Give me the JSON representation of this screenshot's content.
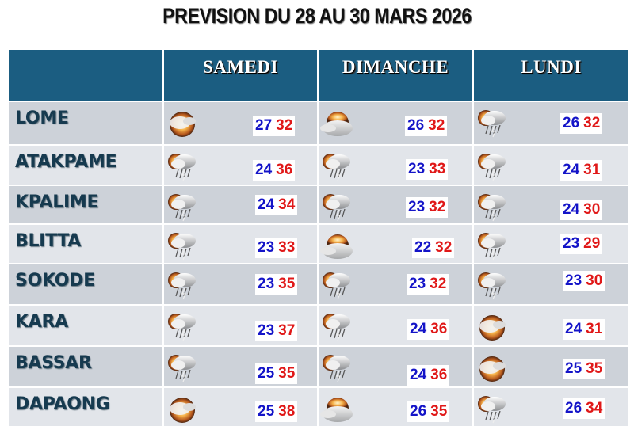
{
  "title": "PREVISION DU 28 AU 30 MARS 2026",
  "colors": {
    "header_bg": "#1b5d81",
    "row_dark": "#cdd2d9",
    "row_light": "#e2e5ea",
    "city_text": "#163a4f",
    "temp_min": "#1414c8",
    "temp_max": "#e01818"
  },
  "days": [
    {
      "label": "SAMEDI"
    },
    {
      "label": "DIMANCHE"
    },
    {
      "label": "LUNDI"
    }
  ],
  "rows": [
    {
      "city": "LOME",
      "forecasts": [
        {
          "icon": "sunny-cloud-icon",
          "min": "27",
          "max": "32"
        },
        {
          "icon": "partly-cloudy-icon",
          "min": "26",
          "max": "32"
        },
        {
          "icon": "thunderstorm-rain-icon",
          "min": "26",
          "max": "32"
        }
      ]
    },
    {
      "city": "ATAKPAME",
      "forecasts": [
        {
          "icon": "thunderstorm-rain-icon",
          "min": "24",
          "max": "36"
        },
        {
          "icon": "thunderstorm-rain-icon",
          "min": "23",
          "max": "33"
        },
        {
          "icon": "thunderstorm-rain-icon",
          "min": "24",
          "max": "31"
        }
      ]
    },
    {
      "city": "KPALIME",
      "forecasts": [
        {
          "icon": "thunderstorm-rain-icon",
          "min": "24",
          "max": "34"
        },
        {
          "icon": "thunderstorm-rain-icon",
          "min": "23",
          "max": "32"
        },
        {
          "icon": "thunderstorm-rain-icon",
          "min": "24",
          "max": "30"
        }
      ]
    },
    {
      "city": "BLITTA",
      "forecasts": [
        {
          "icon": "thunderstorm-rain-icon",
          "min": "23",
          "max": "33"
        },
        {
          "icon": "partly-cloudy-icon",
          "min": "22",
          "max": "32"
        },
        {
          "icon": "thunderstorm-rain-icon",
          "min": "23",
          "max": "29"
        }
      ]
    },
    {
      "city": "SOKODE",
      "forecasts": [
        {
          "icon": "thunderstorm-rain-icon",
          "min": "23",
          "max": "35"
        },
        {
          "icon": "thunderstorm-rain-icon",
          "min": "23",
          "max": "32"
        },
        {
          "icon": "thunderstorm-rain-icon",
          "min": "23",
          "max": "30"
        }
      ]
    },
    {
      "city": "KARA",
      "forecasts": [
        {
          "icon": "thunderstorm-rain-icon",
          "min": "23",
          "max": "37"
        },
        {
          "icon": "thunderstorm-rain-icon",
          "min": "24",
          "max": "36"
        },
        {
          "icon": "sunny-cloud-icon",
          "min": "24",
          "max": "31"
        }
      ]
    },
    {
      "city": "BASSAR",
      "forecasts": [
        {
          "icon": "thunderstorm-rain-icon",
          "min": "25",
          "max": "35"
        },
        {
          "icon": "thunderstorm-rain-icon",
          "min": "24",
          "max": "36"
        },
        {
          "icon": "sunny-cloud-icon",
          "min": "25",
          "max": "35"
        }
      ]
    },
    {
      "city": "DAPAONG",
      "forecasts": [
        {
          "icon": "sunny-cloud-icon",
          "min": "25",
          "max": "38"
        },
        {
          "icon": "partly-cloudy-icon",
          "min": "26",
          "max": "35"
        },
        {
          "icon": "thunderstorm-rain-icon",
          "min": "26",
          "max": "34"
        }
      ]
    }
  ]
}
